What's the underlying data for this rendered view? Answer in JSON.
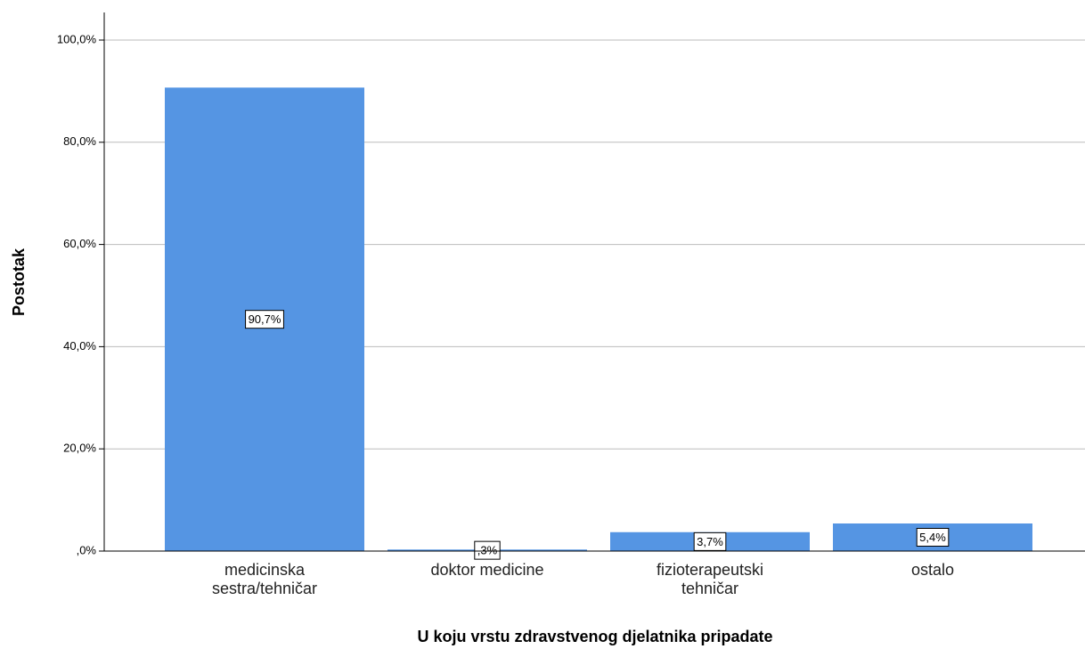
{
  "chart_data": {
    "type": "bar",
    "x_label": "U koju vrstu zdravstvenog djelatnika pripadate",
    "y_label": "Postotak",
    "categories": [
      "medicinska sestra/tehničar",
      "doktor medicine",
      "fizioterapeutski tehničar",
      "ostalo"
    ],
    "values": [
      90.7,
      0.3,
      3.7,
      5.4
    ],
    "value_labels": [
      "90,7%",
      ",3%",
      "3,7%",
      "5,4%"
    ],
    "color": "#5595e3",
    "ylim": [
      0,
      105.4
    ],
    "yticks": [
      {
        "value": 0,
        "label": ",0%"
      },
      {
        "value": 20,
        "label": "20,0%"
      },
      {
        "value": 40,
        "label": "40,0%"
      },
      {
        "value": 60,
        "label": "60,0%"
      },
      {
        "value": 80,
        "label": "80,0%"
      },
      {
        "value": 100,
        "label": "100,0%"
      }
    ],
    "grid": true
  }
}
